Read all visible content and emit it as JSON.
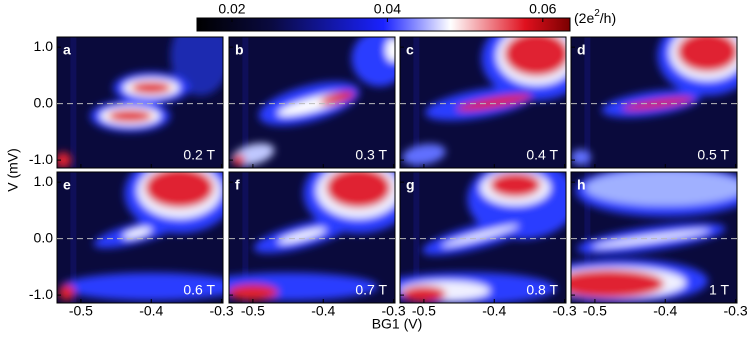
{
  "chart_data": {
    "type": "heatmap-grid",
    "xlabel": "BG1 (V)",
    "ylabel": "V (mV)",
    "xlim": [
      -0.534,
      -0.298
    ],
    "xticks": [
      -0.5,
      -0.4,
      -0.3
    ],
    "ylim": [
      -1.14,
      1.18
    ],
    "yticks": [
      {
        "value": 1,
        "label": "1.0"
      },
      {
        "value": 0,
        "label": "0.0"
      },
      {
        "value": -1,
        "label": "-1.0"
      }
    ],
    "colorbar": {
      "label": [
        "(2e",
        "2",
        "/h)"
      ],
      "lim": [
        0.0155,
        0.0635
      ],
      "ticks": [
        0.02,
        0.04,
        0.06
      ]
    },
    "panels": [
      {
        "label": "a",
        "field": "0.2 T"
      },
      {
        "label": "b",
        "field": "0.3 T"
      },
      {
        "label": "c",
        "field": "0.4 T"
      },
      {
        "label": "d",
        "field": "0.5 T"
      },
      {
        "label": "e",
        "field": "0.6 T"
      },
      {
        "label": "f",
        "field": "0.7 T"
      },
      {
        "label": "g",
        "field": "0.8 T"
      },
      {
        "label": "h",
        "field": "1 T"
      }
    ]
  }
}
